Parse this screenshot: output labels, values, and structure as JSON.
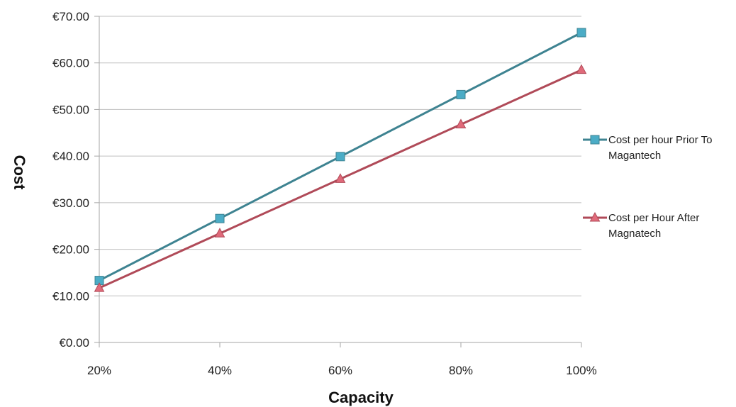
{
  "chart_data": {
    "type": "line",
    "title": "",
    "xlabel": "Capacity",
    "ylabel": "Cost",
    "categories": [
      "20%",
      "40%",
      "60%",
      "80%",
      "100%"
    ],
    "y_ticks": [
      "€0.00",
      "€10.00",
      "€20.00",
      "€30.00",
      "€40.00",
      "€50.00",
      "€60.00",
      "€70.00"
    ],
    "ylim": [
      0,
      70
    ],
    "grid": true,
    "legend_position": "right",
    "series": [
      {
        "name": "Cost per hour Prior To Magantech",
        "legend_lines": [
          "Cost per hour Prior To",
          "Magantech"
        ],
        "marker": "square",
        "color": "#3e8391",
        "marker_fill": "#4bacc6",
        "values": [
          13.3,
          26.6,
          39.9,
          53.2,
          66.5
        ]
      },
      {
        "name": "Cost per Hour After Magnatech",
        "legend_lines": [
          "Cost per Hour After",
          "Magnatech"
        ],
        "marker": "triangle",
        "color": "#b04a58",
        "marker_fill": "#e06a7a",
        "values": [
          11.7,
          23.4,
          35.1,
          46.8,
          58.5
        ]
      }
    ]
  }
}
